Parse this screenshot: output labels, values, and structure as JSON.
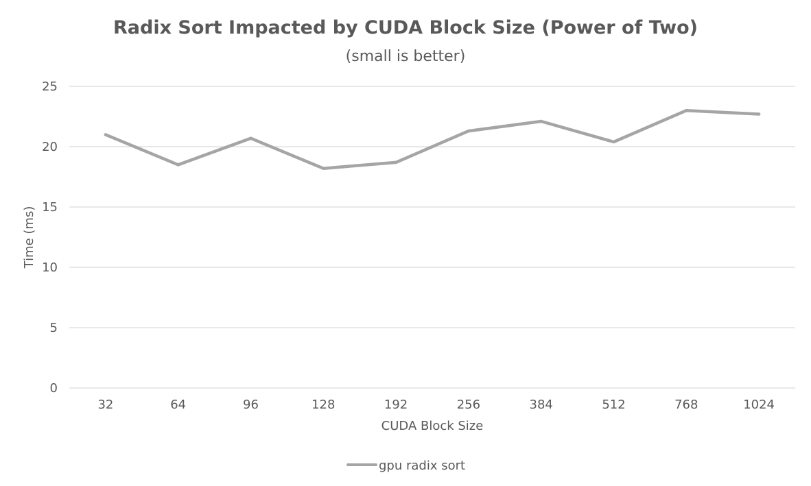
{
  "chart_data": {
    "type": "line",
    "title": "Radix Sort Impacted by CUDA Block Size (Power of Two)",
    "subtitle": "(small is better)",
    "xlabel": "CUDA Block Size",
    "ylabel": "Time (ms)",
    "categories": [
      "32",
      "64",
      "96",
      "128",
      "192",
      "256",
      "384",
      "512",
      "768",
      "1024"
    ],
    "yticks": [
      "0",
      "5",
      "10",
      "15",
      "20",
      "25"
    ],
    "ylim": [
      0,
      25
    ],
    "grid": "horizontal",
    "legend_position": "bottom",
    "series": [
      {
        "name": "gpu radix sort",
        "values": [
          21.0,
          18.5,
          20.7,
          18.2,
          18.7,
          21.3,
          22.1,
          20.4,
          23.0,
          22.7
        ],
        "color": "#a5a5a5"
      }
    ]
  }
}
